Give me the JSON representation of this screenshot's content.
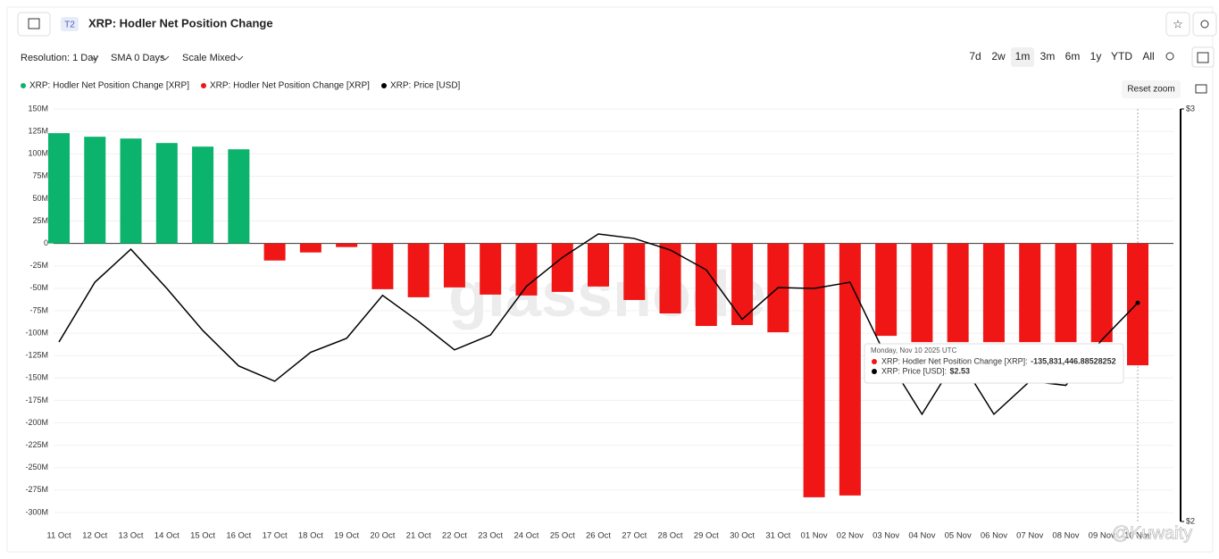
{
  "header": {
    "badge": "T2",
    "title": "XRP: Hodler Net Position Change"
  },
  "controls": {
    "resolution": "Resolution: 1 Day",
    "sma": "SMA 0 Days",
    "scale": "Scale Mixed",
    "ranges": [
      "7d",
      "2w",
      "1m",
      "3m",
      "6m",
      "1y",
      "YTD",
      "All"
    ],
    "reset_zoom": "Reset zoom"
  },
  "watermarks": [
    "glassnode",
    "@Kuwaity"
  ],
  "tooltip": {
    "date": "Monday, Nov 10 2025 UTC",
    "rows": [
      {
        "value": "-135,831,446.88528252"
      },
      {
        "value": "$2.53"
      }
    ]
  },
  "chart_data": {
    "type": "bar",
    "categories": [
      "11 Oct",
      "12 Oct",
      "13 Oct",
      "14 Oct",
      "15 Oct",
      "16 Oct",
      "17 Oct",
      "18 Oct",
      "19 Oct",
      "20 Oct",
      "21 Oct",
      "22 Oct",
      "23 Oct",
      "24 Oct",
      "25 Oct",
      "26 Oct",
      "27 Oct",
      "28 Oct",
      "29 Oct",
      "30 Oct",
      "31 Oct",
      "01 Nov",
      "02 Nov",
      "03 Nov",
      "04 Nov",
      "05 Nov",
      "06 Nov",
      "07 Nov",
      "08 Nov",
      "09 Nov",
      "10 Nov"
    ],
    "series": [
      {
        "name": "XRP: Hodler Net Position Change [XRP]",
        "color": "#0bb36c",
        "type": "bar",
        "values": [
          123,
          119,
          117,
          112,
          108,
          105,
          null,
          null,
          null,
          null,
          null,
          null,
          null,
          null,
          null,
          null,
          null,
          null,
          null,
          null,
          null,
          null,
          null,
          null,
          null,
          null,
          null,
          null,
          null,
          null,
          null
        ]
      },
      {
        "name": "XRP: Hodler Net Position Change [XRP]",
        "color": "#f01616",
        "type": "bar",
        "values": [
          null,
          null,
          null,
          null,
          null,
          null,
          -19,
          -10,
          -4,
          -51,
          -60,
          -49,
          -57,
          -58,
          -54,
          -48,
          -63,
          -78,
          -92,
          -91,
          -99,
          -283,
          -281,
          -103,
          -110,
          -110,
          -110,
          -110,
          -110,
          -110,
          -135.83144688528253
        ]
      },
      {
        "name": "XRP: Price [USD]",
        "color": "#000000",
        "type": "line",
        "axis": "y2",
        "values": [
          2.435,
          2.58,
          2.66,
          2.565,
          2.463,
          2.377,
          2.34,
          2.41,
          2.444,
          2.548,
          2.485,
          2.416,
          2.452,
          2.57,
          2.64,
          2.697,
          2.686,
          2.658,
          2.61,
          2.49,
          2.567,
          2.565,
          2.58,
          2.4,
          2.26,
          2.4,
          2.26,
          2.34,
          2.33,
          2.44,
          2.53
        ]
      }
    ],
    "ylim": [
      -310,
      150
    ],
    "yticks": [
      {
        "value": 150,
        "label": "150M"
      },
      {
        "value": 125,
        "label": "125M"
      },
      {
        "value": 100,
        "label": "100M"
      },
      {
        "value": 75,
        "label": "75M"
      },
      {
        "value": 50,
        "label": "50M"
      },
      {
        "value": 25,
        "label": "25M"
      },
      0,
      {
        "value": -25,
        "label": "-25M"
      },
      {
        "value": -50,
        "label": "-50M"
      },
      {
        "value": -75,
        "label": "-75M"
      },
      {
        "value": -100,
        "label": "-100M"
      },
      {
        "value": -125,
        "label": "-125M"
      },
      {
        "value": -150,
        "label": "-150M"
      },
      {
        "value": -175,
        "label": "-175M"
      },
      {
        "value": -200,
        "label": "-200M"
      },
      {
        "value": -225,
        "label": "-225M"
      },
      {
        "value": -250,
        "label": "-250M"
      },
      {
        "value": -275,
        "label": "-275M"
      },
      {
        "value": -300,
        "label": "-300M"
      }
    ],
    "y2lim": [
      2,
      3
    ],
    "y2ticks": [
      {
        "value": 3,
        "label": "$3"
      },
      {
        "value": 2,
        "label": "$2"
      }
    ],
    "grid": true
  }
}
